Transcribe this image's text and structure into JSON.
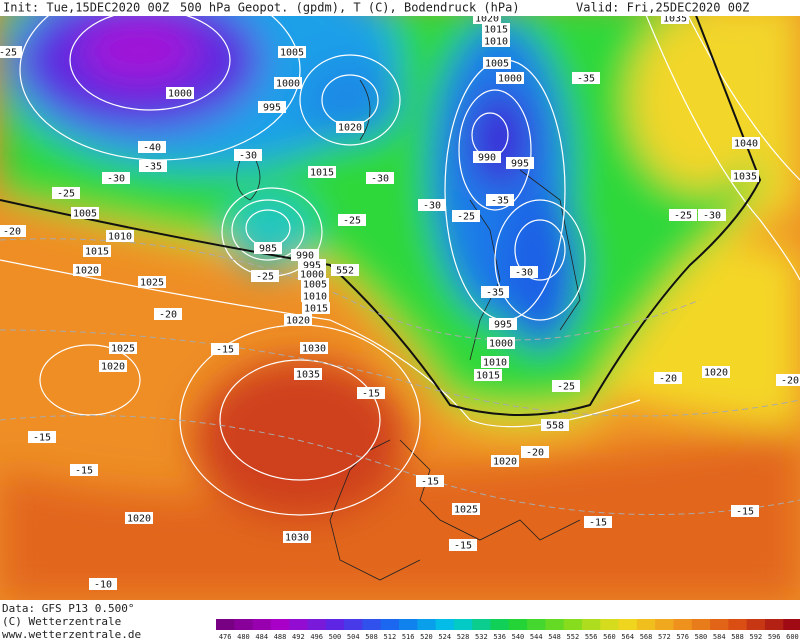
{
  "header": {
    "init": "Init: Tue,15DEC2020 00Z",
    "product": "500 hPa Geopot. (gpdm), T (C), Bodendruck (hPa)",
    "valid": "Valid: Fri,25DEC2020 00Z"
  },
  "footer": {
    "data": "Data: GFS P13 0.500°",
    "copyright": "(C) Wetterzentrale",
    "url": "www.wetterzentrale.de"
  },
  "colorbar": {
    "values": [
      476,
      480,
      484,
      488,
      492,
      496,
      500,
      504,
      508,
      512,
      516,
      520,
      524,
      528,
      532,
      536,
      540,
      544,
      548,
      552,
      556,
      560,
      564,
      568,
      572,
      576,
      580,
      584,
      588,
      592,
      596,
      600
    ]
  },
  "map": {
    "pressure_labels": [
      1000,
      1005,
      1000,
      995,
      1020,
      1015,
      985,
      990,
      995,
      1000,
      1005,
      1010,
      1015,
      1020,
      1005,
      1010,
      1015,
      1020,
      1025,
      1025,
      1020,
      1030,
      1035,
      1030,
      1020,
      1025,
      1020,
      1020,
      1015,
      1010,
      1005,
      1000,
      990,
      995,
      995,
      1000,
      1010,
      1015,
      1040,
      1035,
      1020,
      1035
    ],
    "temperature_labels": [
      -25,
      -40,
      -35,
      -30,
      -25,
      -30,
      -30,
      -25,
      -30,
      -25,
      -35,
      -35,
      -30,
      -35,
      -25,
      -30,
      -25,
      -20,
      -20,
      -15,
      -15,
      -15,
      -15,
      -10,
      -20,
      -20,
      -25,
      -20,
      -15,
      -15,
      -15,
      -15
    ],
    "geopotential_labels": [
      552,
      558
    ]
  }
}
